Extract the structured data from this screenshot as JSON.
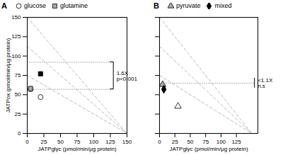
{
  "chart_data": [
    {
      "type": "scatter",
      "title": "A",
      "xlabel": "JATPglyc (pmol/min/μg protein)",
      "ylabel": "JATPox (pmol/min/μg protein)",
      "legend": "upper left",
      "series": [
        {
          "name": "glucose",
          "marker": "circle",
          "color": "white",
          "x": [
            5,
            20
          ],
          "values": [
            57,
            47
          ],
          "xerr": [
            2,
            2
          ],
          "yerr": [
            3,
            3
          ]
        },
        {
          "name": "glutamine",
          "marker": "square",
          "color": "#aaaaaa",
          "colors": [
            "#aaaaaa",
            "black"
          ],
          "x": [
            5,
            20
          ],
          "values": [
            58,
            77
          ],
          "xerr": [
            2,
            2
          ],
          "yerr": [
            3,
            3
          ]
        }
      ],
      "reference_lines": [
        {
          "x": [
            0,
            150
          ],
          "values": [
            150,
            0
          ],
          "line_style": "dashed",
          "color": "#bbbbbb"
        },
        {
          "x": [
            0,
            150
          ],
          "values": [
            112.5,
            0
          ],
          "line_style": "dashed",
          "color": "#bbbbbb"
        },
        {
          "x": [
            0,
            150
          ],
          "values": [
            75,
            0
          ],
          "line_style": "dashed",
          "color": "#bbbbbb"
        },
        {
          "x": [
            0,
            130
          ],
          "values": [
            92,
            92
          ],
          "line_style": "dotted",
          "color": "#aaaaaa"
        },
        {
          "x": [
            0,
            130
          ],
          "values": [
            57,
            57
          ],
          "line_style": "dotted",
          "color": "#aaaaaa"
        }
      ],
      "annotations": [
        {
          "text": "1.6X\np<0.001",
          "x": 130,
          "y": [
            57,
            92
          ]
        }
      ],
      "xlim": [
        0,
        150
      ],
      "ylim": [
        0,
        150
      ],
      "xticks": [
        0,
        25,
        50,
        75,
        100,
        125,
        150
      ],
      "yticks": [
        0,
        25,
        50,
        75,
        100,
        125,
        150
      ]
    },
    {
      "type": "scatter",
      "title": "B",
      "xlabel": "JATPglyc (pmol/min/μg protein)",
      "tick_labels": "x",
      "legend": "upper left",
      "series": [
        {
          "name": "pyruvate",
          "marker": "triangle",
          "color": "#aaaaaa",
          "colors": [
            "#aaaaaa",
            "white"
          ],
          "x": [
            5,
            30
          ],
          "values": [
            63,
            35
          ],
          "xerr": [
            2,
            2
          ],
          "yerr": [
            3,
            3
          ]
        },
        {
          "name": "mixed",
          "marker": "diamond",
          "color": "black",
          "x": [
            7
          ],
          "values": [
            57
          ],
          "xerr": [
            2
          ],
          "yerr": [
            3
          ]
        }
      ],
      "reference_lines": [
        {
          "x": [
            0,
            150
          ],
          "values": [
            150,
            0
          ],
          "line_style": "dashed",
          "color": "#bbbbbb"
        },
        {
          "x": [
            0,
            150
          ],
          "values": [
            112.5,
            0
          ],
          "line_style": "dashed",
          "color": "#bbbbbb"
        },
        {
          "x": [
            0,
            150
          ],
          "values": [
            75,
            0
          ],
          "line_style": "dashed",
          "color": "#bbbbbb"
        },
        {
          "x": [
            0,
            155
          ],
          "values": [
            65,
            65
          ],
          "line_style": "dotted",
          "color": "#aaaaaa"
        }
      ],
      "annotations": [
        {
          "text": "<1.1X\nn.s",
          "x": 155,
          "y": 65
        }
      ],
      "xlim": [
        0,
        160
      ],
      "ylim": [
        0,
        150
      ],
      "xticks": [
        0,
        25,
        50,
        75,
        100,
        125
      ],
      "yticks": [
        0,
        25,
        50,
        75,
        100,
        125,
        150
      ]
    }
  ]
}
